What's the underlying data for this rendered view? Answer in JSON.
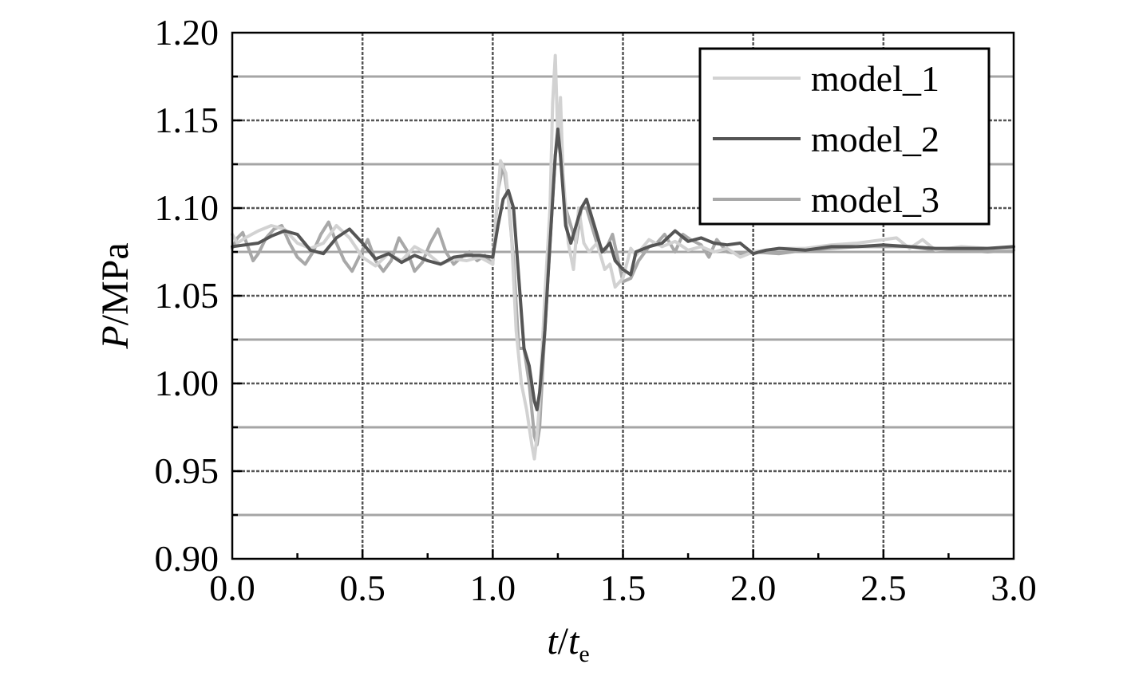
{
  "chart_data": {
    "type": "line",
    "title": "",
    "xlabel_main": "t",
    "xlabel_sep": "/",
    "xlabel_denominator": "t",
    "xlabel_subscript": "e",
    "ylabel_main": "P",
    "ylabel_unit": "/MPa",
    "xlim": [
      0.0,
      3.0
    ],
    "ylim": [
      0.9,
      1.2
    ],
    "x_ticks": [
      "0.0",
      "0.5",
      "1.0",
      "1.5",
      "2.0",
      "2.5",
      "3.0"
    ],
    "y_ticks": [
      "0.90",
      "0.95",
      "1.00",
      "1.05",
      "1.10",
      "1.15",
      "1.20"
    ],
    "grid": true,
    "legend_position": "top-right",
    "series": [
      {
        "name": "model_1",
        "color": "#d2d2d2",
        "x": [
          0.0,
          0.02,
          0.05,
          0.1,
          0.15,
          0.2,
          0.25,
          0.3,
          0.35,
          0.4,
          0.45,
          0.5,
          0.55,
          0.6,
          0.65,
          0.7,
          0.75,
          0.8,
          0.85,
          0.9,
          0.95,
          1.0,
          1.01,
          1.03,
          1.05,
          1.07,
          1.09,
          1.11,
          1.13,
          1.15,
          1.16,
          1.17,
          1.18,
          1.2,
          1.22,
          1.23,
          1.24,
          1.25,
          1.26,
          1.27,
          1.29,
          1.31,
          1.33,
          1.35,
          1.37,
          1.4,
          1.43,
          1.45,
          1.47,
          1.5,
          1.53,
          1.55,
          1.6,
          1.65,
          1.7,
          1.75,
          1.8,
          1.85,
          1.9,
          1.95,
          2.0,
          2.05,
          2.1,
          2.2,
          2.3,
          2.4,
          2.5,
          2.55,
          2.6,
          2.65,
          2.7,
          2.8,
          2.9,
          3.0
        ],
        "y": [
          1.085,
          1.08,
          1.083,
          1.087,
          1.09,
          1.088,
          1.08,
          1.077,
          1.08,
          1.09,
          1.083,
          1.072,
          1.067,
          1.074,
          1.07,
          1.078,
          1.074,
          1.068,
          1.071,
          1.07,
          1.072,
          1.068,
          1.09,
          1.127,
          1.12,
          1.09,
          1.03,
          1.0,
          0.985,
          0.965,
          0.957,
          0.97,
          0.99,
          1.05,
          1.1,
          1.16,
          1.187,
          1.14,
          1.163,
          1.12,
          1.08,
          1.065,
          1.1,
          1.08,
          1.075,
          1.08,
          1.065,
          1.068,
          1.055,
          1.06,
          1.077,
          1.073,
          1.082,
          1.078,
          1.081,
          1.076,
          1.078,
          1.075,
          1.077,
          1.072,
          1.075,
          1.076,
          1.077,
          1.077,
          1.079,
          1.08,
          1.082,
          1.083,
          1.077,
          1.082,
          1.076,
          1.078,
          1.077,
          1.077
        ]
      },
      {
        "name": "model_2",
        "color": "#555555",
        "x": [
          0.0,
          0.05,
          0.1,
          0.15,
          0.2,
          0.25,
          0.3,
          0.35,
          0.4,
          0.45,
          0.5,
          0.55,
          0.6,
          0.65,
          0.7,
          0.75,
          0.8,
          0.85,
          0.9,
          0.95,
          1.0,
          1.02,
          1.04,
          1.06,
          1.08,
          1.1,
          1.12,
          1.14,
          1.16,
          1.17,
          1.18,
          1.2,
          1.22,
          1.24,
          1.25,
          1.26,
          1.28,
          1.3,
          1.32,
          1.34,
          1.36,
          1.38,
          1.4,
          1.42,
          1.45,
          1.47,
          1.5,
          1.53,
          1.55,
          1.6,
          1.65,
          1.7,
          1.75,
          1.8,
          1.85,
          1.9,
          1.95,
          2.0,
          2.05,
          2.1,
          2.2,
          2.3,
          2.4,
          2.5,
          2.6,
          2.7,
          2.8,
          2.9,
          3.0
        ],
        "y": [
          1.078,
          1.079,
          1.08,
          1.084,
          1.087,
          1.085,
          1.076,
          1.074,
          1.083,
          1.088,
          1.08,
          1.071,
          1.074,
          1.069,
          1.073,
          1.07,
          1.068,
          1.072,
          1.073,
          1.073,
          1.072,
          1.09,
          1.105,
          1.11,
          1.1,
          1.06,
          1.02,
          1.01,
          0.99,
          0.985,
          0.995,
          1.03,
          1.08,
          1.13,
          1.145,
          1.13,
          1.09,
          1.08,
          1.09,
          1.1,
          1.105,
          1.095,
          1.085,
          1.075,
          1.08,
          1.07,
          1.065,
          1.062,
          1.075,
          1.078,
          1.08,
          1.087,
          1.081,
          1.083,
          1.08,
          1.079,
          1.08,
          1.074,
          1.076,
          1.077,
          1.076,
          1.078,
          1.078,
          1.079,
          1.078,
          1.077,
          1.077,
          1.077,
          1.078
        ]
      },
      {
        "name": "model_3",
        "color": "#a8a8a8",
        "x": [
          0.0,
          0.02,
          0.04,
          0.06,
          0.08,
          0.1,
          0.13,
          0.16,
          0.19,
          0.22,
          0.25,
          0.28,
          0.31,
          0.34,
          0.37,
          0.4,
          0.43,
          0.46,
          0.49,
          0.52,
          0.55,
          0.58,
          0.61,
          0.64,
          0.67,
          0.7,
          0.73,
          0.76,
          0.79,
          0.82,
          0.85,
          0.88,
          0.91,
          0.94,
          0.97,
          1.0,
          1.02,
          1.04,
          1.06,
          1.08,
          1.1,
          1.12,
          1.14,
          1.16,
          1.17,
          1.18,
          1.2,
          1.22,
          1.24,
          1.25,
          1.26,
          1.28,
          1.3,
          1.32,
          1.34,
          1.36,
          1.38,
          1.4,
          1.43,
          1.46,
          1.5,
          1.53,
          1.56,
          1.6,
          1.63,
          1.66,
          1.7,
          1.73,
          1.76,
          1.8,
          1.83,
          1.86,
          1.9,
          1.95,
          2.0,
          2.1,
          2.2,
          2.3,
          2.4,
          2.5,
          2.6,
          2.7,
          2.8,
          2.9,
          3.0
        ],
        "y": [
          1.077,
          1.083,
          1.086,
          1.078,
          1.07,
          1.074,
          1.083,
          1.088,
          1.09,
          1.08,
          1.072,
          1.068,
          1.075,
          1.085,
          1.092,
          1.08,
          1.07,
          1.064,
          1.073,
          1.082,
          1.07,
          1.064,
          1.07,
          1.083,
          1.076,
          1.064,
          1.069,
          1.08,
          1.088,
          1.075,
          1.068,
          1.072,
          1.075,
          1.07,
          1.073,
          1.068,
          1.11,
          1.125,
          1.105,
          1.07,
          1.02,
          1.02,
          1.0,
          0.97,
          0.965,
          0.975,
          1.03,
          1.08,
          1.13,
          1.142,
          1.13,
          1.1,
          1.09,
          1.08,
          1.1,
          1.1,
          1.09,
          1.08,
          1.075,
          1.085,
          1.058,
          1.06,
          1.07,
          1.078,
          1.08,
          1.085,
          1.075,
          1.085,
          1.082,
          1.079,
          1.072,
          1.082,
          1.075,
          1.074,
          1.075,
          1.074,
          1.076,
          1.077,
          1.078,
          1.078,
          1.078,
          1.076,
          1.076,
          1.075,
          1.076
        ]
      }
    ]
  }
}
